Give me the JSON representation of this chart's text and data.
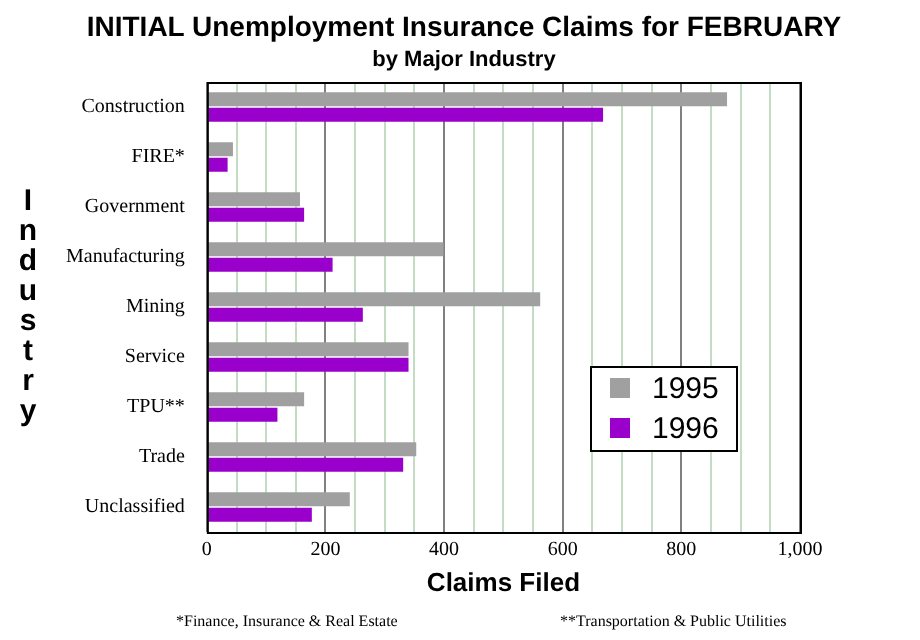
{
  "chart_data": {
    "type": "bar",
    "orientation": "horizontal",
    "title": "INITIAL Unemployment Insurance Claims for FEBRUARY",
    "subtitle": "by Major Industry",
    "xlabel": "Claims Filed",
    "ylabel": "Industry",
    "categories": [
      "Construction",
      "FIRE*",
      "Government",
      "Manufacturing",
      "Mining",
      "Service",
      "TPU**",
      "Trade",
      "Unclassified"
    ],
    "series": [
      {
        "name": "1995",
        "color": "#a0a0a0",
        "values": [
          877,
          44,
          157,
          399,
          562,
          340,
          164,
          353,
          241
        ]
      },
      {
        "name": "1996",
        "color": "#9900cc",
        "values": [
          668,
          35,
          164,
          212,
          263,
          340,
          119,
          331,
          177
        ]
      }
    ],
    "xlim": [
      0,
      1000
    ],
    "xticks": [
      0,
      {
        "value": 50,
        "label": null
      },
      {
        "value": 100,
        "label": null
      },
      {
        "value": 150,
        "label": null
      },
      200,
      {
        "value": 250,
        "label": null
      },
      {
        "value": 300,
        "label": null
      },
      {
        "value": 350,
        "label": null
      },
      400,
      {
        "value": 450,
        "label": null
      },
      {
        "value": 500,
        "label": null
      },
      {
        "value": 550,
        "label": null
      },
      600,
      {
        "value": 650,
        "label": null
      },
      {
        "value": 700,
        "label": null
      },
      {
        "value": 750,
        "label": null
      },
      800,
      {
        "value": 850,
        "label": null
      },
      {
        "value": 900,
        "label": null
      },
      {
        "value": 950,
        "label": null
      },
      {
        "value": 1000,
        "label": "1,000"
      }
    ],
    "grid": "x",
    "legend": "right",
    "annotations": [
      "*Finance, Insurance & Real Estate",
      "**Transportation & Public Utilities"
    ]
  }
}
